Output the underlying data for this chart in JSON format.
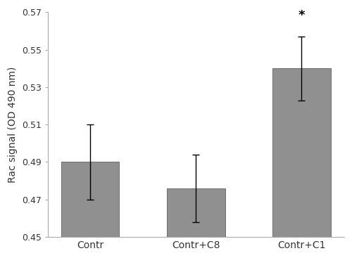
{
  "categories": [
    "Contr",
    "Contr+C8",
    "Contr+C1"
  ],
  "values": [
    0.49,
    0.476,
    0.54
  ],
  "errors": [
    0.02,
    0.018,
    0.017
  ],
  "bar_color": "#909090",
  "bar_edgecolor": "#606060",
  "ylabel": "Rac signal (OD 490 nm)",
  "ylim": [
    0.45,
    0.57
  ],
  "yticks": [
    0.45,
    0.47,
    0.49,
    0.51,
    0.53,
    0.55,
    0.57
  ],
  "asterisk_index": 2,
  "asterisk_text": "*",
  "bar_width": 0.55,
  "figsize": [
    5.0,
    3.67
  ],
  "dpi": 100,
  "spine_color": "#aaaaaa"
}
